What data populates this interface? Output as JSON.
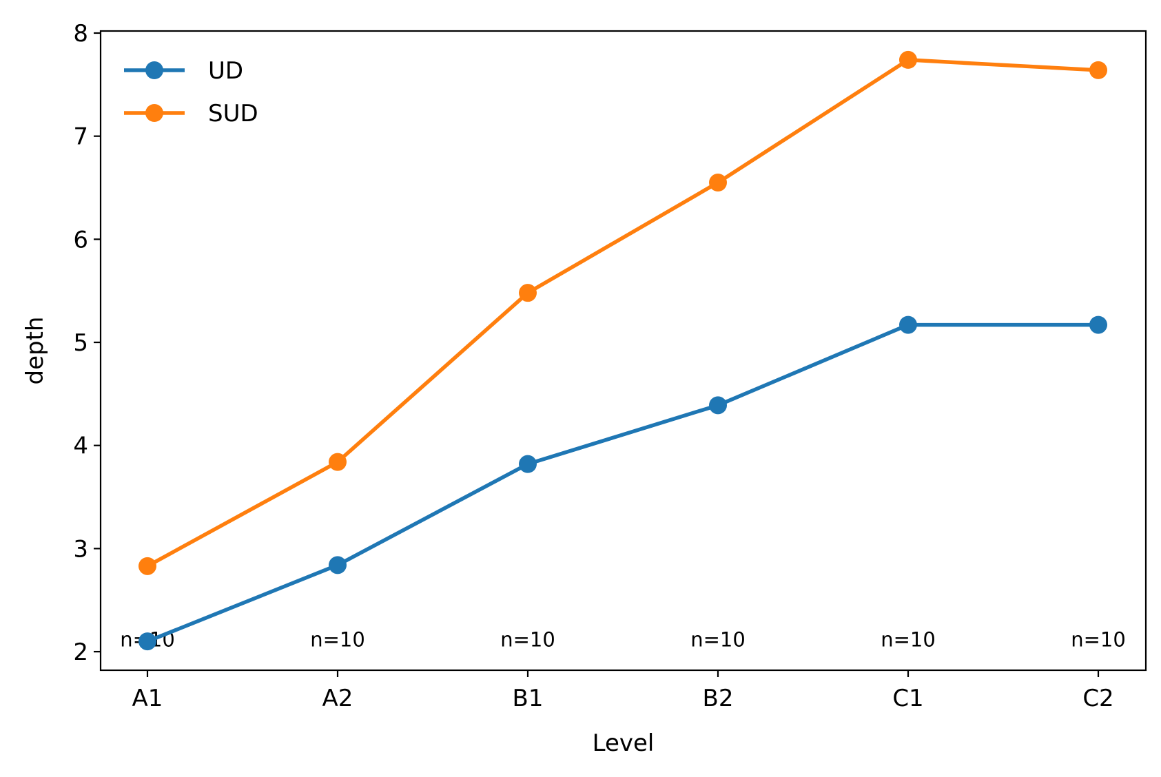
{
  "chart_data": {
    "type": "line",
    "title": "",
    "xlabel": "Level",
    "ylabel": "depth",
    "categories": [
      "A1",
      "A2",
      "B1",
      "B2",
      "C1",
      "C2"
    ],
    "ylim": [
      1.82,
      8.02
    ],
    "yticks": [
      2,
      3,
      4,
      5,
      6,
      7,
      8
    ],
    "grid": false,
    "legend_position": "top-left",
    "series": [
      {
        "name": "UD",
        "color": "#1f77b4",
        "values": [
          2.1,
          2.84,
          3.82,
          4.39,
          5.17,
          5.17
        ]
      },
      {
        "name": "SUD",
        "color": "#ff7f0e",
        "values": [
          2.83,
          3.84,
          5.48,
          6.55,
          7.74,
          7.64
        ]
      }
    ],
    "annotations": [
      "n=10",
      "n=10",
      "n=10",
      "n=10",
      "n=10",
      "n=10"
    ],
    "annotation_y": 2.05
  }
}
